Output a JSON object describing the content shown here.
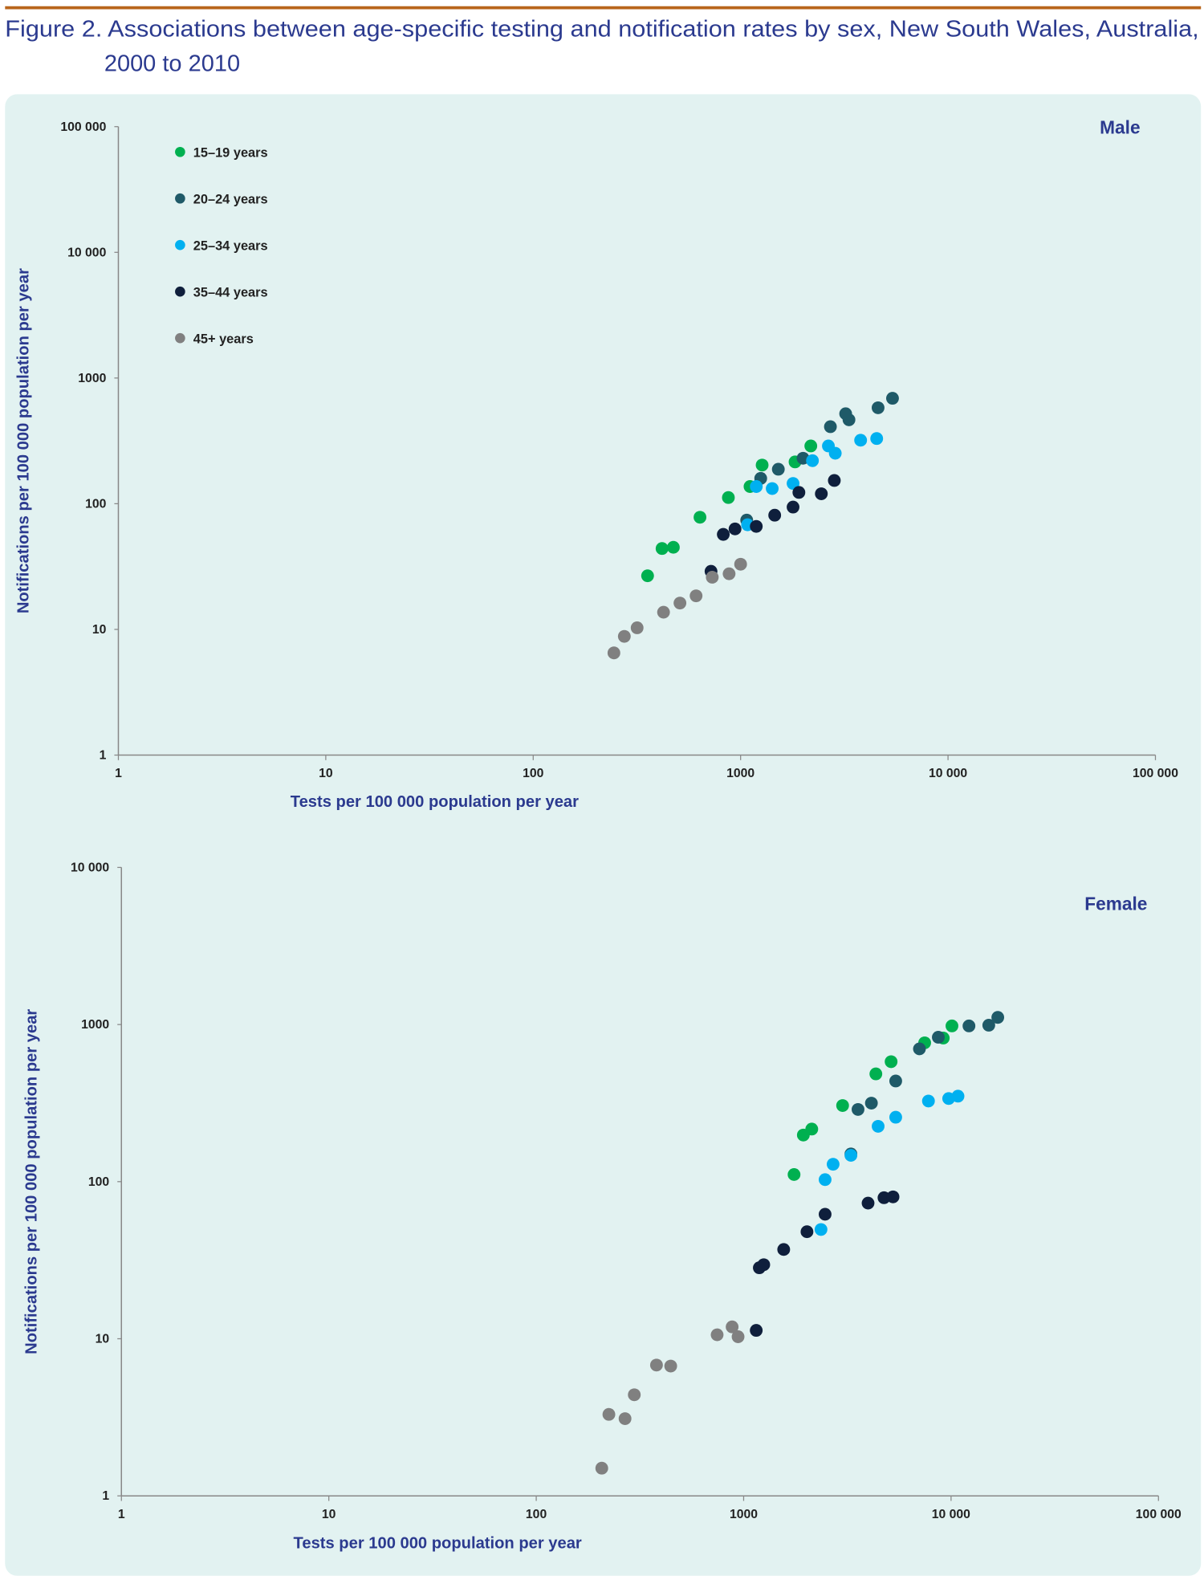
{
  "figure": {
    "title_line1": "Figure 2. Associations between age-specific testing and notification rates by sex, New South Wales, Australia,",
    "title_line2": "2000 to 2010"
  },
  "colors": {
    "rule": "#b8651b",
    "panel": "#e2f2f1",
    "title": "#2b3a8f"
  },
  "chart_data": [
    {
      "type": "scatter",
      "panel_label": "Male",
      "xlabel": "Tests per 100 000 population per year",
      "ylabel": "Notifications per 100 000 population per year",
      "xscale": "log",
      "yscale": "log",
      "xlim": [
        1,
        100000
      ],
      "ylim": [
        1,
        100000
      ],
      "xticks": [
        1,
        10,
        100,
        1000,
        10000,
        100000
      ],
      "xtick_labels": [
        "1",
        "10",
        "100",
        "1000",
        "10 000",
        "100 000"
      ],
      "yticks": [
        1,
        10,
        100,
        1000,
        10000,
        100000
      ],
      "ytick_labels": [
        "1",
        "10",
        "100",
        "1000",
        "10 000",
        "100 000"
      ],
      "legend_position": "top-left",
      "series": [
        {
          "name": "15–19 years",
          "color": "#00b050",
          "points": [
            [
              356,
              26.7
            ],
            [
              418,
              44
            ],
            [
              474,
              45
            ],
            [
              637,
              78
            ],
            [
              873,
              112
            ],
            [
              1110,
              137
            ],
            [
              1270,
              203
            ],
            [
              1830,
              215
            ],
            [
              2180,
              288
            ]
          ]
        },
        {
          "name": "20–24 years",
          "color": "#1f5a68",
          "points": [
            [
              1070,
              74
            ],
            [
              1250,
              159
            ],
            [
              1520,
              188
            ],
            [
              2000,
              230
            ],
            [
              2710,
              410
            ],
            [
              3210,
              520
            ],
            [
              3330,
              465
            ],
            [
              4600,
              580
            ],
            [
              5400,
              690
            ]
          ]
        },
        {
          "name": "25–34 years",
          "color": "#00b0f0",
          "points": [
            [
              1080,
              68
            ],
            [
              1190,
              137
            ],
            [
              1420,
              132
            ],
            [
              1790,
              145
            ],
            [
              2220,
              220
            ],
            [
              2650,
              288
            ],
            [
              2860,
              252
            ],
            [
              3790,
              320
            ],
            [
              4530,
              330
            ]
          ]
        },
        {
          "name": "35–44 years",
          "color": "#0f1f3c",
          "points": [
            [
              720,
              29
            ],
            [
              825,
              57
            ],
            [
              940,
              63
            ],
            [
              1190,
              66
            ],
            [
              1460,
              81
            ],
            [
              1790,
              94
            ],
            [
              1910,
              123
            ],
            [
              2450,
              120
            ],
            [
              2830,
              153
            ]
          ]
        },
        {
          "name": "45+ years",
          "color": "#808080",
          "points": [
            [
              245,
              6.5
            ],
            [
              275,
              8.8
            ],
            [
              317,
              10.3
            ],
            [
              425,
              13.7
            ],
            [
              510,
              16.2
            ],
            [
              610,
              18.5
            ],
            [
              730,
              26
            ],
            [
              880,
              27.7
            ],
            [
              1000,
              33
            ]
          ]
        }
      ]
    },
    {
      "type": "scatter",
      "panel_label": "Female",
      "xlabel": "Tests per 100 000 population per year",
      "ylabel": "Notifications per 100 000 population per year",
      "xscale": "log",
      "yscale": "log",
      "xlim": [
        1,
        100000
      ],
      "ylim": [
        1,
        10000
      ],
      "xticks": [
        1,
        10,
        100,
        1000,
        10000,
        100000
      ],
      "xtick_labels": [
        "1",
        "10",
        "100",
        "1000",
        "10 000",
        "100 000"
      ],
      "yticks": [
        1,
        10,
        100,
        1000,
        10000
      ],
      "ytick_labels": [
        "1",
        "10",
        "100",
        "1000",
        "10 000"
      ],
      "series": [
        {
          "name": "15–19 years",
          "color": "#00b050",
          "points": [
            [
              1750,
              111
            ],
            [
              1940,
              198
            ],
            [
              2130,
              216
            ],
            [
              3000,
              305
            ],
            [
              4340,
              485
            ],
            [
              5140,
              580
            ],
            [
              7460,
              765
            ],
            [
              9170,
              820
            ],
            [
              10100,
              980
            ]
          ]
        },
        {
          "name": "20–24 years",
          "color": "#1f5a68",
          "points": [
            [
              3290,
              150
            ],
            [
              3560,
              288
            ],
            [
              4130,
              316
            ],
            [
              5410,
              437
            ],
            [
              7040,
              700
            ],
            [
              8680,
              830
            ],
            [
              12200,
              980
            ],
            [
              15200,
              990
            ],
            [
              16800,
              1110
            ]
          ]
        },
        {
          "name": "25–34 years",
          "color": "#00b0f0",
          "points": [
            [
              2360,
              49.6
            ],
            [
              2470,
              103
            ],
            [
              2700,
              129
            ],
            [
              3290,
              147
            ],
            [
              4450,
              225
            ],
            [
              5410,
              257
            ],
            [
              7780,
              326
            ],
            [
              9740,
              338
            ],
            [
              10800,
              350
            ]
          ]
        },
        {
          "name": "35–44 years",
          "color": "#0f1f3c",
          "points": [
            [
              1150,
              11.3
            ],
            [
              1190,
              28.3
            ],
            [
              1250,
              29.6
            ],
            [
              1560,
              37
            ],
            [
              2020,
              48
            ],
            [
              2470,
              62
            ],
            [
              3980,
              73
            ],
            [
              4750,
              79
            ],
            [
              5250,
              80
            ]
          ]
        },
        {
          "name": "45+ years",
          "color": "#808080",
          "points": [
            [
              207,
              1.5
            ],
            [
              224,
              3.3
            ],
            [
              268,
              3.1
            ],
            [
              297,
              4.4
            ],
            [
              380,
              6.8
            ],
            [
              445,
              6.7
            ],
            [
              745,
              10.6
            ],
            [
              880,
              11.9
            ],
            [
              940,
              10.3
            ]
          ]
        }
      ]
    }
  ]
}
